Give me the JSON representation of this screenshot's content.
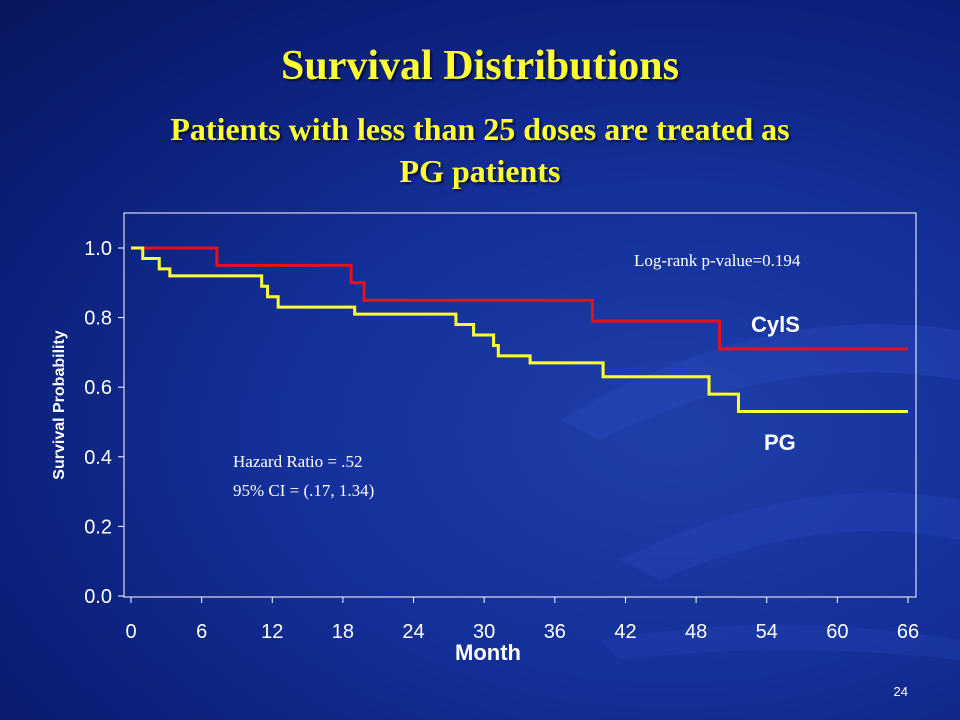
{
  "slide": {
    "title": "Survival Distributions",
    "subtitle_line1": "Patients with less than 25 doses are treated as",
    "subtitle_line2": "PG patients",
    "page_number": "24"
  },
  "chart_data": {
    "type": "line",
    "step": true,
    "xlabel": "Month",
    "ylabel": "Survival Probability",
    "xlim": [
      0,
      66
    ],
    "ylim": [
      0,
      1.1
    ],
    "xticks": [
      0,
      6,
      12,
      18,
      24,
      30,
      36,
      42,
      48,
      54,
      60,
      66
    ],
    "yticks": [
      0.0,
      0.2,
      0.4,
      0.6,
      0.8,
      1.0
    ],
    "ytick_labels": [
      "0.0",
      "0.2",
      "0.4",
      "0.6",
      "0.8",
      "1.0"
    ],
    "grid": false,
    "annotations": {
      "logrank": "Log-rank p-value=0.194",
      "hazard_ratio": "Hazard Ratio = .52",
      "ci": "95% CI = (.17, 1.34)"
    },
    "series": [
      {
        "name": "CylS",
        "color": "#e8101e",
        "x": [
          0,
          7.3,
          18.7,
          19.8,
          39.2,
          50.0,
          66
        ],
        "y": [
          1.0,
          0.95,
          0.9,
          0.85,
          0.79,
          0.71,
          0.71
        ]
      },
      {
        "name": "PG",
        "color": "#ffff33",
        "x": [
          0,
          1.0,
          2.4,
          3.3,
          11.1,
          11.6,
          12.5,
          19.0,
          27.6,
          29.1,
          30.8,
          31.2,
          33.9,
          40.1,
          49.1,
          51.6,
          66
        ],
        "y": [
          1.0,
          0.97,
          0.94,
          0.92,
          0.89,
          0.86,
          0.83,
          0.81,
          0.78,
          0.75,
          0.72,
          0.69,
          0.67,
          0.63,
          0.58,
          0.53,
          0.53
        ]
      }
    ]
  }
}
